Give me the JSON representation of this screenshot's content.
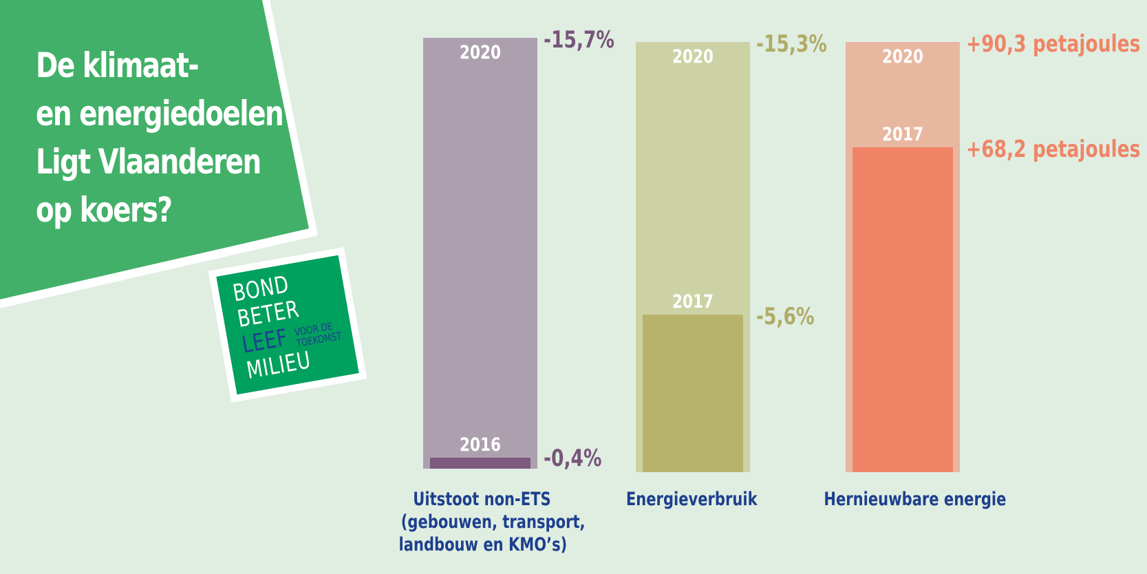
{
  "title_lines": [
    "De klimaat-",
    "en energiedoelen",
    "Ligt Vlaanderen",
    "op koers?"
  ],
  "logo": {
    "words": [
      "BOND",
      "BETER",
      "LEEF",
      "MILIEU"
    ],
    "tagline": [
      "VOOR DE",
      "TOEKOMST"
    ]
  },
  "colors": {
    "background": "#e0eee2",
    "banner": "#42b068",
    "label_blue": "#1d3f8e"
  },
  "chart_data": {
    "type": "bar",
    "categories": [
      "Uitstoot non-ETS (gebouwen, transport, landbouw en KMO’s)",
      "Energieverbruik",
      "Hernieuwbare energie"
    ],
    "category_label_lines": [
      [
        "Uitstoot non-ETS",
        "(gebouwen, transport,",
        "landbouw en KMO’s)"
      ],
      [
        "Energieverbruik"
      ],
      [
        "Hernieuwbare energie"
      ]
    ],
    "bars": [
      {
        "target_year": "2020",
        "target_value": -15.7,
        "target_label": "-15,7%",
        "current_year": "2016",
        "current_value": -0.4,
        "current_label": "-0,4%",
        "light_color": "#ada0ae",
        "dark_color": "#7d5a7e",
        "text_color": "#77557a"
      },
      {
        "target_year": "2020",
        "target_value": -15.3,
        "target_label": "-15,3%",
        "current_year": "2017",
        "current_value": -5.6,
        "current_label": "-5,6%",
        "light_color": "#cdd2a4",
        "dark_color": "#b8b36c",
        "text_color": "#b0ab66"
      },
      {
        "target_year": "2020",
        "target_value": 90.3,
        "target_label": "+90,3 petajoules",
        "current_year": "2017",
        "current_value": 68.2,
        "current_label": "+68,2 petajoules",
        "light_color": "#e8b7a0",
        "dark_color": "#f08366",
        "text_color": "#ef8566"
      }
    ]
  }
}
